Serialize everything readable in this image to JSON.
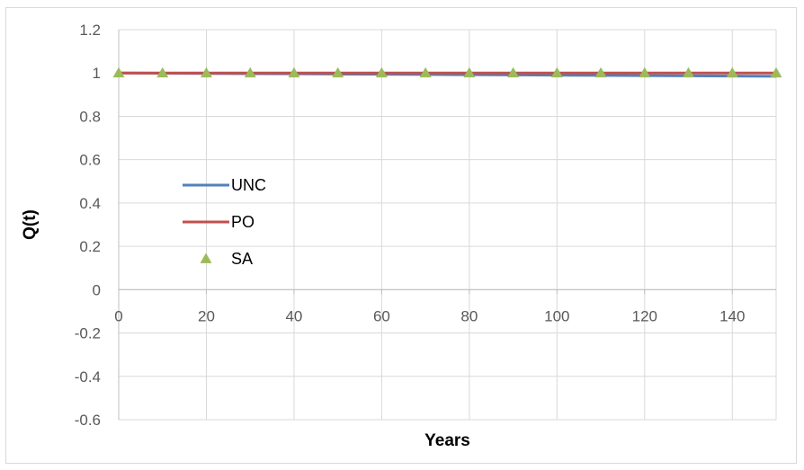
{
  "chart_data": {
    "type": "line",
    "title": "",
    "xlabel": "Years",
    "ylabel": "Q(t)",
    "xlim": [
      0,
      150
    ],
    "ylim": [
      -0.6,
      1.2
    ],
    "x_ticks": [
      0,
      20,
      40,
      60,
      80,
      100,
      120,
      140
    ],
    "y_ticks": [
      -0.6,
      -0.4,
      -0.2,
      0,
      0.2,
      0.4,
      0.6,
      0.8,
      1,
      1.2
    ],
    "y_tick_labels": [
      "-0.6",
      "-0.4",
      "-0.2",
      "0",
      "0.2",
      "0.4",
      "0.6",
      "0.8",
      "1",
      "1.2"
    ],
    "grid": true,
    "legend_position": "left-center",
    "series": [
      {
        "name": "UNC",
        "style": "line",
        "color": "#4f81bd",
        "x": [
          0,
          10,
          20,
          30,
          40,
          50,
          60,
          70,
          80,
          90,
          100,
          110,
          120,
          130,
          140,
          150
        ],
        "values": [
          1,
          0.999,
          0.998,
          0.997,
          0.996,
          0.995,
          0.994,
          0.993,
          0.992,
          0.991,
          0.99,
          0.989,
          0.988,
          0.987,
          0.986,
          0.985
        ]
      },
      {
        "name": "PO",
        "style": "line",
        "color": "#c0504d",
        "x": [
          0,
          10,
          20,
          30,
          40,
          50,
          60,
          70,
          80,
          90,
          100,
          110,
          120,
          130,
          140,
          150
        ],
        "values": [
          1,
          1,
          1,
          1,
          1,
          1,
          1,
          1,
          1,
          1,
          1,
          1,
          1,
          1,
          1,
          1
        ]
      },
      {
        "name": "SA",
        "style": "marker-triangle",
        "color": "#9bbb59",
        "x": [
          0,
          10,
          20,
          30,
          40,
          50,
          60,
          70,
          80,
          90,
          100,
          110,
          120,
          130,
          140,
          150
        ],
        "values": [
          1,
          1,
          1,
          1,
          1,
          1,
          1,
          1,
          1,
          1,
          1,
          1,
          1,
          1,
          1,
          1
        ]
      }
    ]
  },
  "colors": {
    "gridline": "#d9d9d9",
    "tick_text": "#595959"
  }
}
